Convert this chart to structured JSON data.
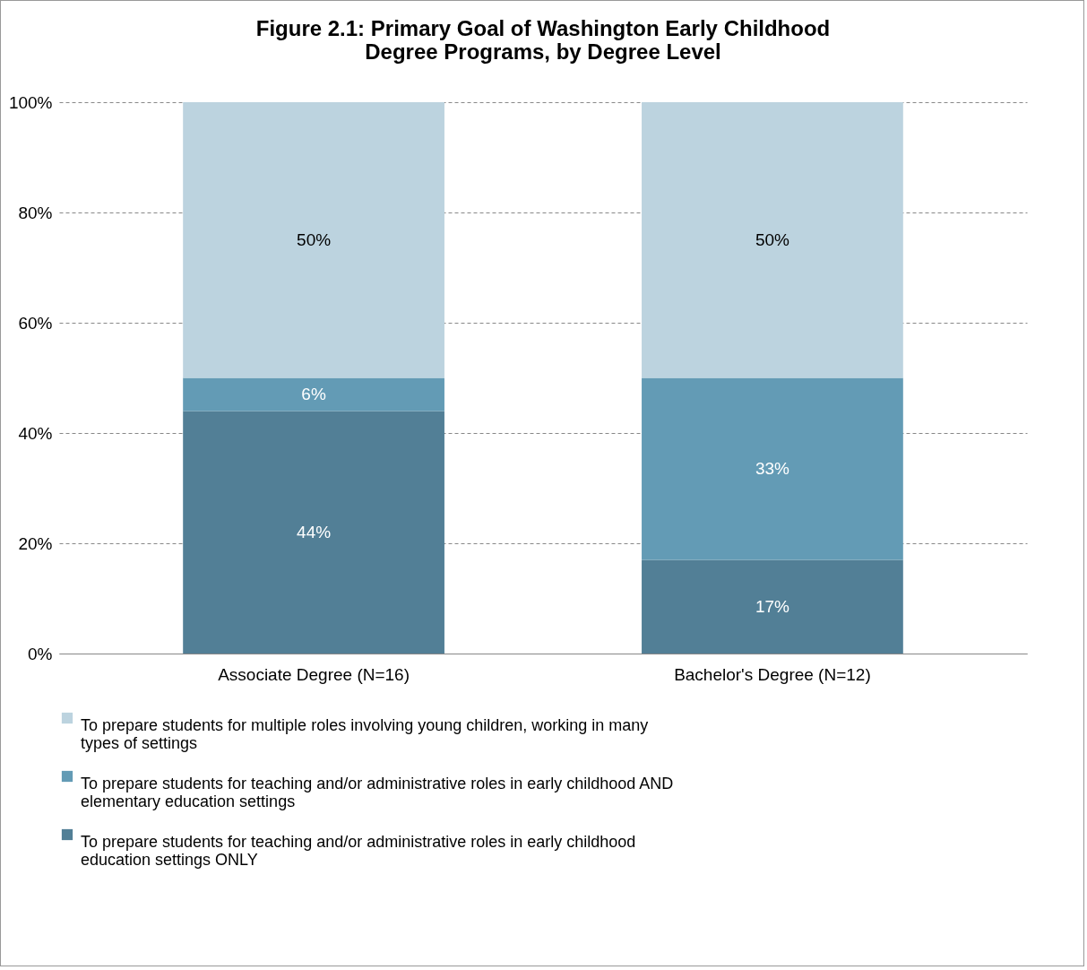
{
  "chart_data": {
    "type": "bar",
    "title": "Figure 2.1: Primary Goal of Washington Early Childhood Degree Programs, by Degree Level",
    "categories": [
      "Associate Degree (N=16)",
      "Bachelor's Degree (N=12)"
    ],
    "stacked": true,
    "series": [
      {
        "name": "To prepare students for teaching and/or administrative roles in early childhood education settings ONLY",
        "color": "#527f96",
        "values": [
          44,
          17
        ],
        "value_labels": [
          "44%",
          "17%"
        ]
      },
      {
        "name": "To prepare students for teaching and/or administrative roles in early childhood AND elementary education settings",
        "color": "#639bb5",
        "values": [
          6,
          33
        ],
        "value_labels": [
          "6%",
          "33%"
        ]
      },
      {
        "name": "To prepare students for multiple roles involving young children, working in many types of settings",
        "color": "#bcd3df",
        "values": [
          50,
          50
        ],
        "value_labels": [
          "50%",
          "50%"
        ]
      }
    ],
    "ylim": [
      0,
      100
    ],
    "yticks": [
      {
        "value": 0,
        "label": "0%"
      },
      {
        "value": 20,
        "label": "20%"
      },
      {
        "value": 40,
        "label": "40%"
      },
      {
        "value": 60,
        "label": "60%"
      },
      {
        "value": 80,
        "label": "80%"
      },
      {
        "value": 100,
        "label": "100%"
      }
    ],
    "grid": "y",
    "legend": "bottom"
  }
}
